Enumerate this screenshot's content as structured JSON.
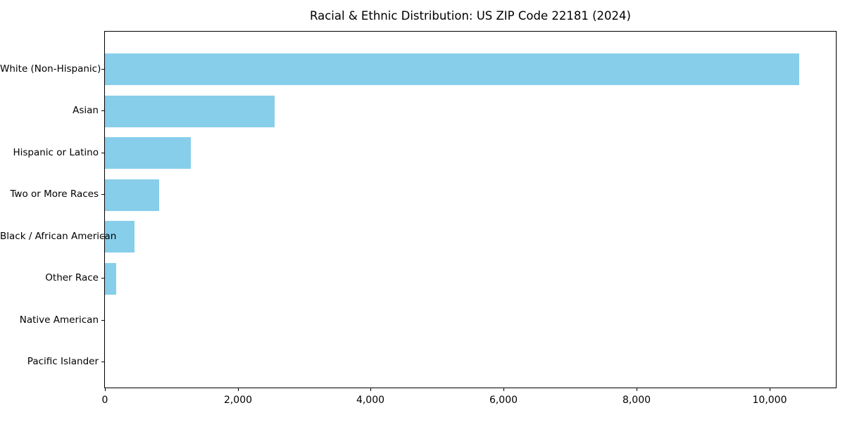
{
  "figure": {
    "background": "#ffffff"
  },
  "chart_data": {
    "type": "bar",
    "orientation": "horizontal",
    "title": "Racial & Ethnic Distribution: US ZIP Code 22181 (2024)",
    "categories": [
      "White (Non-Hispanic)",
      "Asian",
      "Hispanic or Latino",
      "Two or More Races",
      "Black / African American",
      "Other Race",
      "Native American",
      "Pacific Islander"
    ],
    "values": [
      10450,
      2550,
      1290,
      815,
      445,
      170,
      0,
      0
    ],
    "xlabel": "",
    "ylabel": "",
    "xlim": [
      0,
      11000
    ],
    "xticks": [
      0,
      2000,
      4000,
      6000,
      8000,
      10000
    ],
    "xtick_labels": [
      "0",
      "2,000",
      "4,000",
      "6,000",
      "8,000",
      "10,000"
    ],
    "bar_color": "#87CEEB",
    "axis_color": "#000000",
    "grid": false,
    "legend_position": "none"
  }
}
